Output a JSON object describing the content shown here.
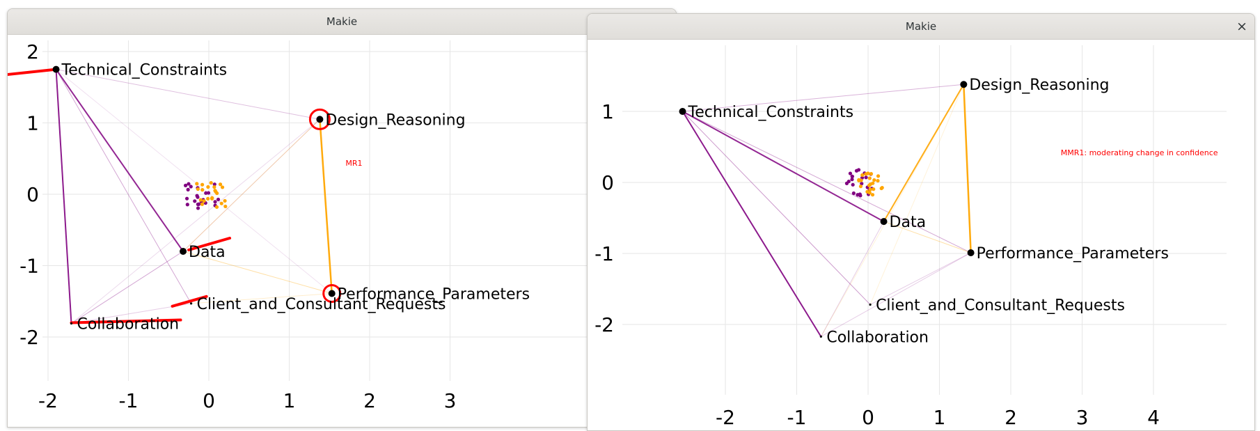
{
  "windows": [
    {
      "title": "Makie",
      "chart_data": {
        "type": "scatter",
        "x_ticks": [
          -2,
          -1,
          0,
          1,
          2,
          3
        ],
        "y_ticks": [
          2,
          1,
          0,
          -1,
          -2
        ],
        "grid": true,
        "nodes": [
          {
            "label": "Technical_Constraints",
            "x": -1.9,
            "y": 1.75
          },
          {
            "label": "Design_Reasoning",
            "x": 1.38,
            "y": 1.05
          },
          {
            "label": "Data",
            "x": -0.32,
            "y": -0.8
          },
          {
            "label": "Performance_Parameters",
            "x": 1.53,
            "y": -1.39
          },
          {
            "label": "Client_and_Consultant_Requests",
            "x": -0.22,
            "y": -1.53
          },
          {
            "label": "Collaboration",
            "x": -1.71,
            "y": -1.81
          }
        ],
        "cluster_center": [
          -0.05,
          -0.02
        ],
        "annotation": "MR1"
      }
    },
    {
      "title": "Makie",
      "close_icon": "close-icon",
      "chart_data": {
        "type": "scatter",
        "x_ticks": [
          -2,
          -1,
          0,
          1,
          2,
          3,
          4
        ],
        "y_ticks": [
          1,
          0,
          -1,
          -2
        ],
        "grid": true,
        "nodes": [
          {
            "label": "Technical_Constraints",
            "x": -2.6,
            "y": 1.0
          },
          {
            "label": "Design_Reasoning",
            "x": 1.34,
            "y": 1.38
          },
          {
            "label": "Data",
            "x": 0.22,
            "y": -0.55
          },
          {
            "label": "Performance_Parameters",
            "x": 1.44,
            "y": -0.99
          },
          {
            "label": "Client_and_Consultant_Requests",
            "x": 0.03,
            "y": -1.72
          },
          {
            "label": "Collaboration",
            "x": -0.66,
            "y": -2.17
          }
        ],
        "cluster_center": [
          -0.05,
          0.0
        ],
        "annotation": "MMR1: moderating change in confidence"
      }
    }
  ],
  "colors": {
    "purple": "#800080",
    "orange": "#FFA500",
    "annotation": "#FF0000",
    "node": "#000000",
    "grid": "#e6e6e6"
  }
}
